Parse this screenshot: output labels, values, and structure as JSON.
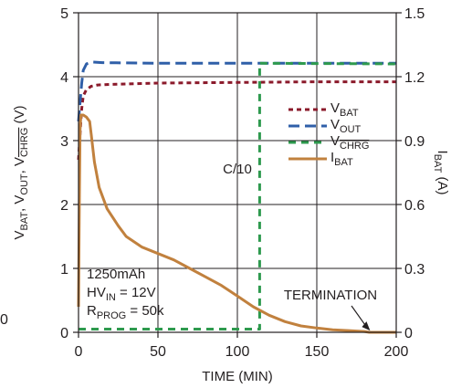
{
  "chart_data": {
    "type": "line",
    "title": "",
    "xlabel": "TIME (MIN)",
    "ylabel_left": {
      "parts": [
        "V",
        "BAT",
        ", V",
        "OUT",
        ", V",
        "CHRG",
        " (V)"
      ]
    },
    "ylabel_right": {
      "parts": [
        "I",
        "BAT",
        " (A)"
      ]
    },
    "xlim": [
      0,
      200
    ],
    "ylim_left": [
      0,
      5
    ],
    "ylim_right": [
      0,
      1.5
    ],
    "xticks": [
      "0",
      "50",
      "100",
      "150",
      "200"
    ],
    "yticks_left": [
      "0",
      "1",
      "2",
      "3",
      "4",
      "5"
    ],
    "yticks_right": [
      "0",
      "0.3",
      "0.6",
      "0.9",
      "1.2",
      "1.5"
    ],
    "grid": true,
    "legend_position": "right",
    "colors": {
      "vbat": "#8b1a2b",
      "vout": "#2f5fa8",
      "vchrg": "#2e9a4e",
      "ibat": "#c1813e",
      "grid": "#231f20"
    },
    "series": [
      {
        "key": "vbat",
        "legend": {
          "main": "V",
          "sub": "BAT"
        },
        "axis": "left",
        "points": [
          [
            0,
            2.7
          ],
          [
            1,
            3.1
          ],
          [
            2,
            3.5
          ],
          [
            3,
            3.7
          ],
          [
            5,
            3.8
          ],
          [
            8,
            3.85
          ],
          [
            12,
            3.87
          ],
          [
            20,
            3.88
          ],
          [
            50,
            3.9
          ],
          [
            100,
            3.91
          ],
          [
            150,
            3.92
          ],
          [
            200,
            3.92
          ]
        ]
      },
      {
        "key": "vout",
        "legend": {
          "main": "V",
          "sub": "OUT"
        },
        "axis": "left",
        "points": [
          [
            0,
            3.3
          ],
          [
            1,
            3.6
          ],
          [
            2,
            3.9
          ],
          [
            3,
            4.1
          ],
          [
            5,
            4.2
          ],
          [
            8,
            4.23
          ],
          [
            15,
            4.22
          ],
          [
            50,
            4.21
          ],
          [
            115,
            4.21
          ],
          [
            150,
            4.21
          ],
          [
            200,
            4.21
          ]
        ]
      },
      {
        "key": "vchrg",
        "legend": {
          "main": "V",
          "sub": "CHRG"
        },
        "axis": "left",
        "points": [
          [
            0,
            0.05
          ],
          [
            114,
            0.05
          ],
          [
            114,
            4.21
          ],
          [
            200,
            4.2
          ]
        ]
      },
      {
        "key": "ibat",
        "legend": {
          "main": "I",
          "sub": "BAT"
        },
        "axis": "right",
        "points": [
          [
            0,
            0.12
          ],
          [
            0.5,
            0.6
          ],
          [
            1,
            0.95
          ],
          [
            1.5,
            1.02
          ],
          [
            3,
            1.02
          ],
          [
            5,
            1.01
          ],
          [
            7,
            0.99
          ],
          [
            8,
            0.93
          ],
          [
            10,
            0.8
          ],
          [
            13,
            0.68
          ],
          [
            18,
            0.58
          ],
          [
            25,
            0.5
          ],
          [
            30,
            0.45
          ],
          [
            40,
            0.4
          ],
          [
            50,
            0.37
          ],
          [
            60,
            0.34
          ],
          [
            70,
            0.3
          ],
          [
            80,
            0.26
          ],
          [
            90,
            0.22
          ],
          [
            100,
            0.17
          ],
          [
            110,
            0.12
          ],
          [
            120,
            0.08
          ],
          [
            130,
            0.05
          ],
          [
            140,
            0.03
          ],
          [
            150,
            0.02
          ],
          [
            160,
            0.012
          ],
          [
            170,
            0.008
          ],
          [
            180,
            0.004
          ],
          [
            183,
            0.0
          ],
          [
            200,
            0.0
          ]
        ]
      }
    ],
    "annotations": {
      "c10": "C/10",
      "termination": "TERMINATION",
      "conditions": [
        {
          "main": "1250mAh",
          "sub": "",
          "tail": ""
        },
        {
          "main": "HV",
          "sub": "IN",
          "tail": " = 12V"
        },
        {
          "main": "R",
          "sub": "PROG",
          "tail": " = 50k"
        }
      ],
      "edge_label": "0"
    }
  }
}
